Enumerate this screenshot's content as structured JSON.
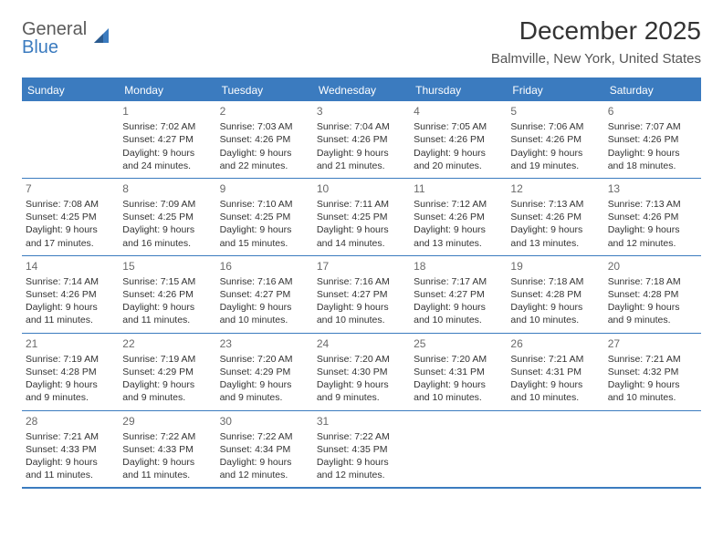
{
  "logo": {
    "top": "General",
    "bottom": "Blue"
  },
  "title": "December 2025",
  "subtitle": "Balmville, New York, United States",
  "colors": {
    "brand": "#3b7bbf",
    "text": "#333333",
    "muted": "#6a6a6a",
    "bg": "#ffffff"
  },
  "daynames": [
    "Sunday",
    "Monday",
    "Tuesday",
    "Wednesday",
    "Thursday",
    "Friday",
    "Saturday"
  ],
  "weeks": [
    [
      {
        "n": "",
        "l": []
      },
      {
        "n": "1",
        "l": [
          "Sunrise: 7:02 AM",
          "Sunset: 4:27 PM",
          "Daylight: 9 hours",
          "and 24 minutes."
        ]
      },
      {
        "n": "2",
        "l": [
          "Sunrise: 7:03 AM",
          "Sunset: 4:26 PM",
          "Daylight: 9 hours",
          "and 22 minutes."
        ]
      },
      {
        "n": "3",
        "l": [
          "Sunrise: 7:04 AM",
          "Sunset: 4:26 PM",
          "Daylight: 9 hours",
          "and 21 minutes."
        ]
      },
      {
        "n": "4",
        "l": [
          "Sunrise: 7:05 AM",
          "Sunset: 4:26 PM",
          "Daylight: 9 hours",
          "and 20 minutes."
        ]
      },
      {
        "n": "5",
        "l": [
          "Sunrise: 7:06 AM",
          "Sunset: 4:26 PM",
          "Daylight: 9 hours",
          "and 19 minutes."
        ]
      },
      {
        "n": "6",
        "l": [
          "Sunrise: 7:07 AM",
          "Sunset: 4:26 PM",
          "Daylight: 9 hours",
          "and 18 minutes."
        ]
      }
    ],
    [
      {
        "n": "7",
        "l": [
          "Sunrise: 7:08 AM",
          "Sunset: 4:25 PM",
          "Daylight: 9 hours",
          "and 17 minutes."
        ]
      },
      {
        "n": "8",
        "l": [
          "Sunrise: 7:09 AM",
          "Sunset: 4:25 PM",
          "Daylight: 9 hours",
          "and 16 minutes."
        ]
      },
      {
        "n": "9",
        "l": [
          "Sunrise: 7:10 AM",
          "Sunset: 4:25 PM",
          "Daylight: 9 hours",
          "and 15 minutes."
        ]
      },
      {
        "n": "10",
        "l": [
          "Sunrise: 7:11 AM",
          "Sunset: 4:25 PM",
          "Daylight: 9 hours",
          "and 14 minutes."
        ]
      },
      {
        "n": "11",
        "l": [
          "Sunrise: 7:12 AM",
          "Sunset: 4:26 PM",
          "Daylight: 9 hours",
          "and 13 minutes."
        ]
      },
      {
        "n": "12",
        "l": [
          "Sunrise: 7:13 AM",
          "Sunset: 4:26 PM",
          "Daylight: 9 hours",
          "and 13 minutes."
        ]
      },
      {
        "n": "13",
        "l": [
          "Sunrise: 7:13 AM",
          "Sunset: 4:26 PM",
          "Daylight: 9 hours",
          "and 12 minutes."
        ]
      }
    ],
    [
      {
        "n": "14",
        "l": [
          "Sunrise: 7:14 AM",
          "Sunset: 4:26 PM",
          "Daylight: 9 hours",
          "and 11 minutes."
        ]
      },
      {
        "n": "15",
        "l": [
          "Sunrise: 7:15 AM",
          "Sunset: 4:26 PM",
          "Daylight: 9 hours",
          "and 11 minutes."
        ]
      },
      {
        "n": "16",
        "l": [
          "Sunrise: 7:16 AM",
          "Sunset: 4:27 PM",
          "Daylight: 9 hours",
          "and 10 minutes."
        ]
      },
      {
        "n": "17",
        "l": [
          "Sunrise: 7:16 AM",
          "Sunset: 4:27 PM",
          "Daylight: 9 hours",
          "and 10 minutes."
        ]
      },
      {
        "n": "18",
        "l": [
          "Sunrise: 7:17 AM",
          "Sunset: 4:27 PM",
          "Daylight: 9 hours",
          "and 10 minutes."
        ]
      },
      {
        "n": "19",
        "l": [
          "Sunrise: 7:18 AM",
          "Sunset: 4:28 PM",
          "Daylight: 9 hours",
          "and 10 minutes."
        ]
      },
      {
        "n": "20",
        "l": [
          "Sunrise: 7:18 AM",
          "Sunset: 4:28 PM",
          "Daylight: 9 hours",
          "and 9 minutes."
        ]
      }
    ],
    [
      {
        "n": "21",
        "l": [
          "Sunrise: 7:19 AM",
          "Sunset: 4:28 PM",
          "Daylight: 9 hours",
          "and 9 minutes."
        ]
      },
      {
        "n": "22",
        "l": [
          "Sunrise: 7:19 AM",
          "Sunset: 4:29 PM",
          "Daylight: 9 hours",
          "and 9 minutes."
        ]
      },
      {
        "n": "23",
        "l": [
          "Sunrise: 7:20 AM",
          "Sunset: 4:29 PM",
          "Daylight: 9 hours",
          "and 9 minutes."
        ]
      },
      {
        "n": "24",
        "l": [
          "Sunrise: 7:20 AM",
          "Sunset: 4:30 PM",
          "Daylight: 9 hours",
          "and 9 minutes."
        ]
      },
      {
        "n": "25",
        "l": [
          "Sunrise: 7:20 AM",
          "Sunset: 4:31 PM",
          "Daylight: 9 hours",
          "and 10 minutes."
        ]
      },
      {
        "n": "26",
        "l": [
          "Sunrise: 7:21 AM",
          "Sunset: 4:31 PM",
          "Daylight: 9 hours",
          "and 10 minutes."
        ]
      },
      {
        "n": "27",
        "l": [
          "Sunrise: 7:21 AM",
          "Sunset: 4:32 PM",
          "Daylight: 9 hours",
          "and 10 minutes."
        ]
      }
    ],
    [
      {
        "n": "28",
        "l": [
          "Sunrise: 7:21 AM",
          "Sunset: 4:33 PM",
          "Daylight: 9 hours",
          "and 11 minutes."
        ]
      },
      {
        "n": "29",
        "l": [
          "Sunrise: 7:22 AM",
          "Sunset: 4:33 PM",
          "Daylight: 9 hours",
          "and 11 minutes."
        ]
      },
      {
        "n": "30",
        "l": [
          "Sunrise: 7:22 AM",
          "Sunset: 4:34 PM",
          "Daylight: 9 hours",
          "and 12 minutes."
        ]
      },
      {
        "n": "31",
        "l": [
          "Sunrise: 7:22 AM",
          "Sunset: 4:35 PM",
          "Daylight: 9 hours",
          "and 12 minutes."
        ]
      },
      {
        "n": "",
        "l": []
      },
      {
        "n": "",
        "l": []
      },
      {
        "n": "",
        "l": []
      }
    ]
  ]
}
